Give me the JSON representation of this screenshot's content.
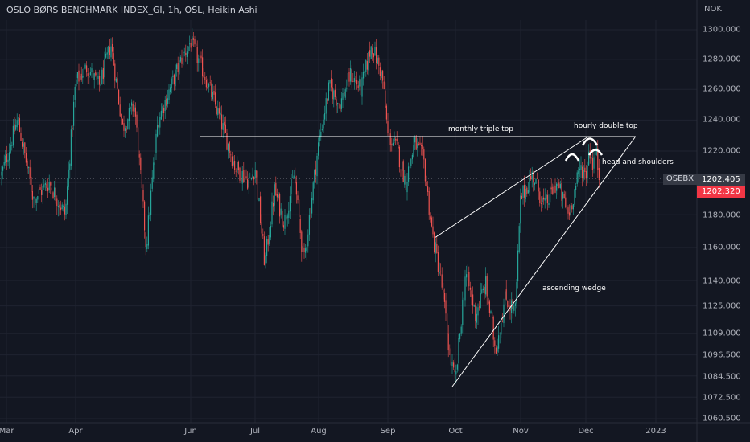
{
  "header": {
    "title": "OSLO BØRS BENCHMARK INDEX_GI, 1h, OSL, Heikin Ashi",
    "currency": "NOK"
  },
  "price_axis": {
    "labels": [
      "1300.000",
      "1280.000",
      "1260.000",
      "1240.000",
      "1220.000",
      "1200.000",
      "1180.000",
      "1160.000",
      "1140.000",
      "1125.000",
      "1109.000",
      "1096.500",
      "1084.500",
      "1072.500",
      "1060.500"
    ]
  },
  "time_axis": {
    "labels": [
      "Mar",
      "Apr",
      "Jun",
      "Jul",
      "Aug",
      "Sep",
      "Oct",
      "Nov",
      "Dec",
      "2023"
    ]
  },
  "annotations": {
    "triple_top": "monthly triple top",
    "double_top": "hourly double top",
    "head_shoulders": "head and shoulders",
    "wedge": "ascending wedge"
  },
  "last_price": {
    "symbol": "OSEBX",
    "value": "1202.405",
    "value2": "1202.320"
  },
  "colors": {
    "up": "#26a69a",
    "down": "#ef5350",
    "bg": "#131722",
    "grid": "#1f2330",
    "axis_text": "#b2b5be",
    "annotation": "#ffffff"
  },
  "chart_data": {
    "type": "candlestick",
    "chart_style": "Heikin Ashi",
    "interval": "1h",
    "title": "OSLO BØRS BENCHMARK INDEX_GI, 1h, OSL, Heikin Ashi",
    "currency": "NOK",
    "symbol": "OSEBX",
    "y_scale": "log",
    "ylim": [
      1055,
      1312
    ],
    "x_ticks": [
      "Mar",
      "Apr",
      "Jun",
      "Jul",
      "Aug",
      "Sep",
      "Oct",
      "Nov",
      "Dec",
      "2023"
    ],
    "y_ticks": [
      1300,
      1280,
      1260,
      1240,
      1220,
      1200,
      1180,
      1160,
      1140,
      1125,
      1109,
      1096.5,
      1084.5,
      1072.5,
      1060.5
    ],
    "last_price": 1202.405,
    "last_price_2": 1202.32,
    "price_path": [
      [
        "Mar",
        1205
      ],
      [
        "Mar",
        1240
      ],
      [
        "Mar",
        1190
      ],
      [
        "Mar",
        1200
      ],
      [
        "Mar",
        1180
      ],
      [
        "Apr",
        1265
      ],
      [
        "Apr",
        1275
      ],
      [
        "Apr",
        1262
      ],
      [
        "Apr",
        1290
      ],
      [
        "Apr",
        1235
      ],
      [
        "Apr",
        1250
      ],
      [
        "Apr",
        1160
      ],
      [
        "Apr",
        1240
      ],
      [
        "Apr",
        1260
      ],
      [
        "Apr",
        1280
      ],
      [
        "Jun",
        1292
      ],
      [
        "Jun",
        1268
      ],
      [
        "Jun",
        1240
      ],
      [
        "Jun",
        1210
      ],
      [
        "Jun",
        1200
      ],
      [
        "Jul",
        1210
      ],
      [
        "Jul",
        1150
      ],
      [
        "Jul",
        1195
      ],
      [
        "Jul",
        1175
      ],
      [
        "Jul",
        1205
      ],
      [
        "Jul",
        1150
      ],
      [
        "Jul",
        1200
      ],
      [
        "Aug",
        1225
      ],
      [
        "Aug",
        1262
      ],
      [
        "Aug",
        1250
      ],
      [
        "Aug",
        1270
      ],
      [
        "Aug",
        1260
      ],
      [
        "Aug",
        1290
      ],
      [
        "Aug",
        1268
      ],
      [
        "Sep",
        1230
      ],
      [
        "Sep",
        1222
      ],
      [
        "Sep",
        1200
      ],
      [
        "Sep",
        1225
      ],
      [
        "Sep",
        1215
      ],
      [
        "Sep",
        1168
      ],
      [
        "Sep",
        1140
      ],
      [
        "Sep",
        1095
      ],
      [
        "Oct",
        1080
      ],
      [
        "Oct",
        1145
      ],
      [
        "Oct",
        1120
      ],
      [
        "Oct",
        1138
      ],
      [
        "Oct",
        1100
      ],
      [
        "Oct",
        1130
      ],
      [
        "Oct",
        1122
      ],
      [
        "Nov",
        1190
      ],
      [
        "Nov",
        1205
      ],
      [
        "Nov",
        1185
      ],
      [
        "Nov",
        1200
      ],
      [
        "Nov",
        1180
      ],
      [
        "Nov",
        1210
      ],
      [
        "Dec",
        1205
      ],
      [
        "Dec",
        1222
      ],
      [
        "Dec",
        1212
      ],
      [
        "Dec",
        1219
      ],
      [
        "Dec",
        1202
      ]
    ],
    "annotations": [
      {
        "type": "horizontal_line",
        "value": 1229,
        "label": "monthly triple top"
      },
      {
        "type": "text",
        "label": "hourly double top"
      },
      {
        "type": "text",
        "label": "head and shoulders"
      },
      {
        "type": "wedge",
        "label": "ascending wedge",
        "lower_line": [
          [
            "Oct",
            1080
          ],
          [
            "Dec",
            1228
          ]
        ],
        "upper_line": [
          [
            "Sep",
            1165
          ],
          [
            "Dec",
            1228
          ]
        ]
      }
    ]
  }
}
